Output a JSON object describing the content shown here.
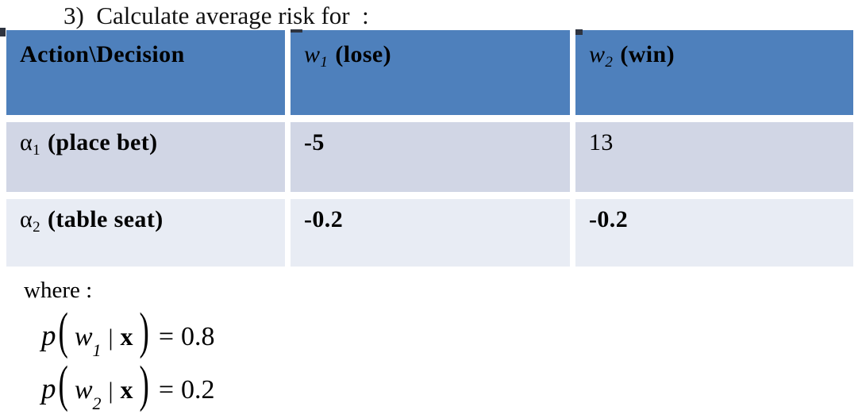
{
  "title": "3)  Calculate average risk for  :",
  "table": {
    "header": [
      {
        "text": "Action\\Decision"
      },
      {
        "var": "w",
        "sub": "1",
        "rest": "(lose)"
      },
      {
        "var": "w",
        "sub": "2",
        "rest": "(win)"
      }
    ],
    "rows": [
      {
        "action": {
          "var": "α",
          "sub": "1",
          "rest": "(place bet)"
        },
        "lose": "-5",
        "win": "13"
      },
      {
        "action": {
          "var": "α",
          "sub": "2",
          "rest": "(table seat)"
        },
        "lose": "-0.2",
        "win": "-0.2"
      }
    ]
  },
  "where_label": "where :",
  "formulas": [
    {
      "p": "p",
      "open": "(",
      "var": "w",
      "sub": "1",
      "bar": "|",
      "x": "x",
      "close": ")",
      "eq": "=",
      "value": "0.8"
    },
    {
      "p": "p",
      "open": "(",
      "var": "w",
      "sub": "2",
      "bar": "|",
      "x": "x",
      "close": ")",
      "eq": "=",
      "value": "0.2"
    }
  ],
  "colors": {
    "header_bg": "#4E80BC",
    "row_odd_bg": "#D1D6E5",
    "row_even_bg": "#E8ECF4",
    "text": "#000000",
    "background": "#FFFFFF"
  }
}
